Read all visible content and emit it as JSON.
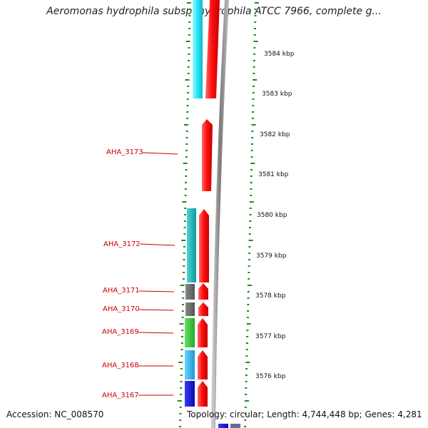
{
  "title": "Aeromonas hydrophila subsp. hydrophila ATCC 7966, complete g...",
  "accession": "Accession: NC_008570",
  "topology": "Topology: circular; Length: 4,744,448 bp; Genes: 4,281",
  "scale_labels": [
    "3584 kbp",
    "3583 kbp",
    "3582 kbp",
    "3581 kbp",
    "3580 kbp",
    "3579 kbp",
    "3578 kbp",
    "3577 kbp",
    "3576 kbp"
  ],
  "genes": [
    {
      "id": "AHA_3173",
      "cog_color": null,
      "strand_color": "#ff1a1a"
    },
    {
      "id": "AHA_3172",
      "cog_color": "#19b8b8",
      "strand_color": "#ff1a1a"
    },
    {
      "id": "AHA_3171",
      "cog_color": "#666666",
      "strand_color": "#ff1a1a"
    },
    {
      "id": "AHA_3170",
      "cog_color": "#666666",
      "strand_color": "#ff1a1a"
    },
    {
      "id": "AHA_3169",
      "cog_color": "#33cc33",
      "strand_color": "#ff1a1a"
    },
    {
      "id": "AHA_3168",
      "cog_color": "#33bbee",
      "strand_color": "#ff1a1a"
    },
    {
      "id": "AHA_3167",
      "cog_color": "#1a1add",
      "strand_color": "#ff1a1a"
    }
  ],
  "colors": {
    "cyan_gene": "#22e5f5",
    "red_gene": "#ff1a1a",
    "backbone": "#9a9a9a",
    "ticks": "#1f8a1f",
    "label": "#cc0000"
  }
}
